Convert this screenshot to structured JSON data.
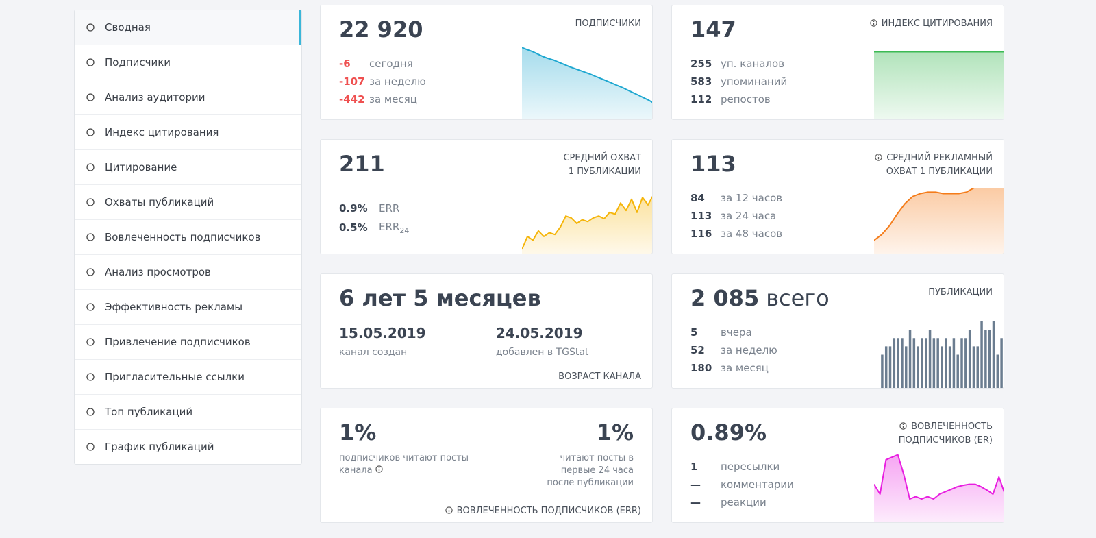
{
  "sidebar": {
    "items": [
      "Сводная",
      "Подписчики",
      "Анализ аудитории",
      "Индекс цитирования",
      "Цитирование",
      "Охваты публикаций",
      "Вовлеченность подписчиков",
      "Анализ просмотров",
      "Эффективность рекламы",
      "Привлечение подписчиков",
      "Пригласительные ссылки",
      "Топ публикаций",
      "График публикаций"
    ]
  },
  "cards": [
    {
      "value": "22 920",
      "title": [
        "ПОДПИСЧИКИ"
      ],
      "rows": [
        {
          "value": "-6",
          "label": "сегодня"
        },
        {
          "value": "-107",
          "label": "за неделю"
        },
        {
          "value": "-442",
          "label": "за месяц"
        }
      ],
      "negative": true,
      "sparkline": {
        "type": "area",
        "color": "#1ea7d0",
        "ylim": [
          22780,
          23380
        ],
        "values": [
          23362,
          23345,
          23330,
          23310,
          23290,
          23275,
          23262,
          23245,
          23228,
          23210,
          23195,
          23180,
          23165,
          23150,
          23132,
          23115,
          23098,
          23080,
          23062,
          23045,
          23025,
          23005,
          22985,
          22965,
          22945,
          22920
        ]
      }
    },
    {
      "value": "147",
      "title": [
        "ИНДЕКС ЦИТИРОВАНИЯ"
      ],
      "info": true,
      "rows": [
        {
          "value": "255",
          "label": "уп. каналов"
        },
        {
          "value": "583",
          "label": "упоминаний"
        },
        {
          "value": "112",
          "label": "репостов"
        }
      ],
      "sparkline": {
        "type": "area",
        "color": "#3cba54",
        "ylim": [
          0,
          158
        ],
        "values": [
          147,
          147,
          147,
          147,
          147,
          147,
          147,
          147
        ]
      }
    },
    {
      "value": "211",
      "title": [
        "СРЕДНИЙ ОХВАТ",
        "1 ПУБЛИКАЦИИ"
      ],
      "rows": [
        {
          "value": "0.9%",
          "label": "ERR"
        },
        {
          "value": "0.5%",
          "label": "ERR",
          "sub": "24"
        }
      ],
      "sparkline": {
        "type": "area",
        "color": "#f5b50a",
        "ylim": [
          100,
          270
        ],
        "values": [
          115,
          150,
          140,
          165,
          150,
          160,
          155,
          175,
          205,
          200,
          185,
          195,
          190,
          200,
          205,
          198,
          215,
          210,
          240,
          220,
          250,
          215,
          255,
          235,
          262
        ]
      }
    },
    {
      "value": "113",
      "title": [
        "СРЕДНИЙ РЕКЛАМНЫЙ",
        "ОХВАТ 1 ПУБЛИКАЦИИ"
      ],
      "info": true,
      "rows": [
        {
          "value": "84",
          "label": "за 12 часов"
        },
        {
          "value": "113",
          "label": "за 24 часа"
        },
        {
          "value": "116",
          "label": "за 48 часов"
        }
      ],
      "sparkline": {
        "type": "area",
        "color": "#f47c1a",
        "ylim": [
          70,
          116
        ],
        "values": [
          80,
          84,
          90,
          98,
          105,
          110,
          112,
          113,
          113,
          112,
          112,
          112,
          113,
          116,
          116,
          116,
          116,
          116
        ]
      }
    },
    {
      "value": "6 лет 5 месяцев",
      "dates": [
        {
          "value": "15.05.2019",
          "label": "канал создан"
        },
        {
          "value": "24.05.2019",
          "label": "добавлен в TGStat"
        }
      ],
      "footer": "ВОЗРАСТ КАНАЛА"
    },
    {
      "value": "2 085",
      "value_suffix": "всего",
      "title": [
        "ПУБЛИКАЦИИ"
      ],
      "rows": [
        {
          "value": "5",
          "label": "вчера"
        },
        {
          "value": "52",
          "label": "за неделю"
        },
        {
          "value": "180",
          "label": "за месяц"
        }
      ],
      "sparkline": {
        "type": "bar",
        "color": "#6b7d90",
        "ylim": [
          0,
          8
        ],
        "values": [
          4,
          5,
          5,
          6,
          6,
          6,
          5,
          7,
          6,
          5,
          6,
          6,
          7,
          6,
          6,
          5,
          6,
          5,
          6,
          4,
          6,
          6,
          7,
          5,
          5,
          8,
          7,
          7,
          8,
          4,
          6
        ]
      }
    },
    {
      "stats": [
        {
          "value": "1%",
          "label": "подписчиков читают посты канала"
        },
        {
          "value": "1%",
          "label": "читают посты в первые 24 часа после публикации"
        }
      ],
      "footer": "ВОВЛЕЧЕННОСТЬ ПОДПИСЧИКОВ (ERR)",
      "info": true
    },
    {
      "value": "0.89%",
      "title": [
        "ВОВЛЕЧЕННОСТЬ",
        "ПОДПИСЧИКОВ (ER)"
      ],
      "info": true,
      "rows": [
        {
          "value": "1",
          "label": "пересылки"
        },
        {
          "value": "—",
          "label": "комментарии"
        },
        {
          "value": "—",
          "label": "реакции"
        }
      ],
      "sparkline": {
        "type": "area",
        "color": "#e81ee0",
        "ylim": [
          0,
          1.45
        ],
        "values": [
          0.8,
          0.6,
          1.3,
          1.35,
          1.4,
          1.0,
          0.5,
          0.55,
          0.5,
          0.55,
          0.5,
          0.6,
          0.65,
          0.7,
          0.75,
          0.78,
          0.8,
          0.8,
          0.75,
          0.68,
          0.6,
          0.95,
          0.6
        ]
      }
    }
  ]
}
